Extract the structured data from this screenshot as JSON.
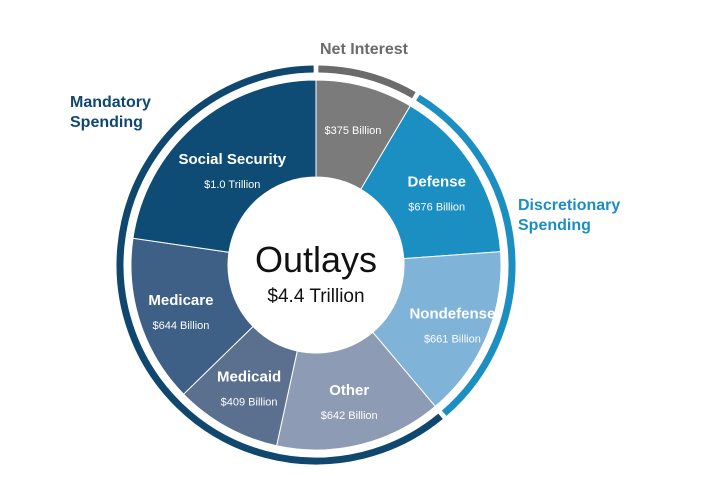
{
  "chart_data": {
    "type": "pie",
    "style": "donut",
    "title": "Outlays",
    "subtitle": "$4.4 Trillion",
    "segments": [
      {
        "name": "Net Interest",
        "label": "$375 Billion",
        "value": 375,
        "color": "#7b7b7b",
        "group": "net_interest"
      },
      {
        "name": "Defense",
        "label": "$676 Billion",
        "value": 676,
        "color": "#1b8ec2",
        "group": "discretionary"
      },
      {
        "name": "Nondefense",
        "label": "$661 Billion",
        "value": 661,
        "color": "#7fb3d8",
        "group": "discretionary"
      },
      {
        "name": "Other",
        "label": "$642 Billion",
        "value": 642,
        "color": "#8e9bb5",
        "group": "mandatory"
      },
      {
        "name": "Medicaid",
        "label": "$409 Billion",
        "value": 409,
        "color": "#5b6f8e",
        "group": "mandatory"
      },
      {
        "name": "Medicare",
        "label": "$644 Billion",
        "value": 644,
        "color": "#3e5f86",
        "group": "mandatory"
      },
      {
        "name": "Social Security",
        "label": "$1.0 Trillion",
        "value": 1000,
        "color": "#0f4c75",
        "group": "mandatory"
      }
    ],
    "groups": [
      {
        "id": "mandatory",
        "label": [
          "Mandatory",
          "Spending"
        ],
        "color": "#10476e"
      },
      {
        "id": "discretionary",
        "label": [
          "Discretionary",
          "Spending"
        ],
        "color": "#1b8ec2"
      },
      {
        "id": "net_interest",
        "label": [
          "Net Interest"
        ],
        "color": "#6b6b6b"
      }
    ]
  }
}
